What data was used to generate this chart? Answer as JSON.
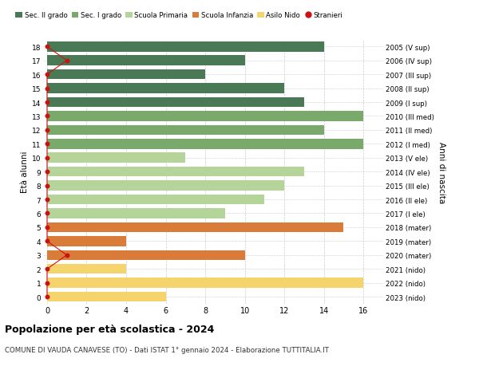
{
  "ages": [
    18,
    17,
    16,
    15,
    14,
    13,
    12,
    11,
    10,
    9,
    8,
    7,
    6,
    5,
    4,
    3,
    2,
    1,
    0
  ],
  "years": [
    "2005 (V sup)",
    "2006 (IV sup)",
    "2007 (III sup)",
    "2008 (II sup)",
    "2009 (I sup)",
    "2010 (III med)",
    "2011 (II med)",
    "2012 (I med)",
    "2013 (V ele)",
    "2014 (IV ele)",
    "2015 (III ele)",
    "2016 (II ele)",
    "2017 (I ele)",
    "2018 (mater)",
    "2019 (mater)",
    "2020 (mater)",
    "2021 (nido)",
    "2022 (nido)",
    "2023 (nido)"
  ],
  "values": [
    14,
    10,
    8,
    12,
    13,
    16,
    14,
    16,
    7,
    13,
    12,
    11,
    9,
    15,
    4,
    10,
    4,
    16,
    6
  ],
  "stranieri": [
    0,
    1,
    0,
    0,
    0,
    0,
    0,
    0,
    0,
    0,
    0,
    0,
    0,
    0,
    0,
    1,
    0,
    0,
    0
  ],
  "bar_colors": [
    "#4a7a55",
    "#4a7a55",
    "#4a7a55",
    "#4a7a55",
    "#4a7a55",
    "#7aaa6b",
    "#7aaa6b",
    "#7aaa6b",
    "#b5d49a",
    "#b5d49a",
    "#b5d49a",
    "#b5d49a",
    "#b5d49a",
    "#d97c3a",
    "#d97c3a",
    "#d97c3a",
    "#f5d46e",
    "#f5d46e",
    "#f5d46e"
  ],
  "legend_labels": [
    "Sec. II grado",
    "Sec. I grado",
    "Scuola Primaria",
    "Scuola Infanzia",
    "Asilo Nido",
    "Stranieri"
  ],
  "legend_colors": [
    "#4a7a55",
    "#7aaa6b",
    "#b5d49a",
    "#d97c3a",
    "#f5d46e",
    "#cc1111"
  ],
  "stranieri_color": "#cc1111",
  "title": "Popolazione per età scolastica - 2024",
  "subtitle": "COMUNE DI VAUDA CANAVESE (TO) - Dati ISTAT 1° gennaio 2024 - Elaborazione TUTTITALIA.IT",
  "ylabel_left": "Età alunni",
  "ylabel_right": "Anni di nascita",
  "xlim": [
    0,
    17
  ],
  "ylim": [
    -0.5,
    18.5
  ],
  "xticks": [
    0,
    2,
    4,
    6,
    8,
    10,
    12,
    14,
    16
  ],
  "background_color": "#ffffff",
  "grid_color": "#cccccc"
}
